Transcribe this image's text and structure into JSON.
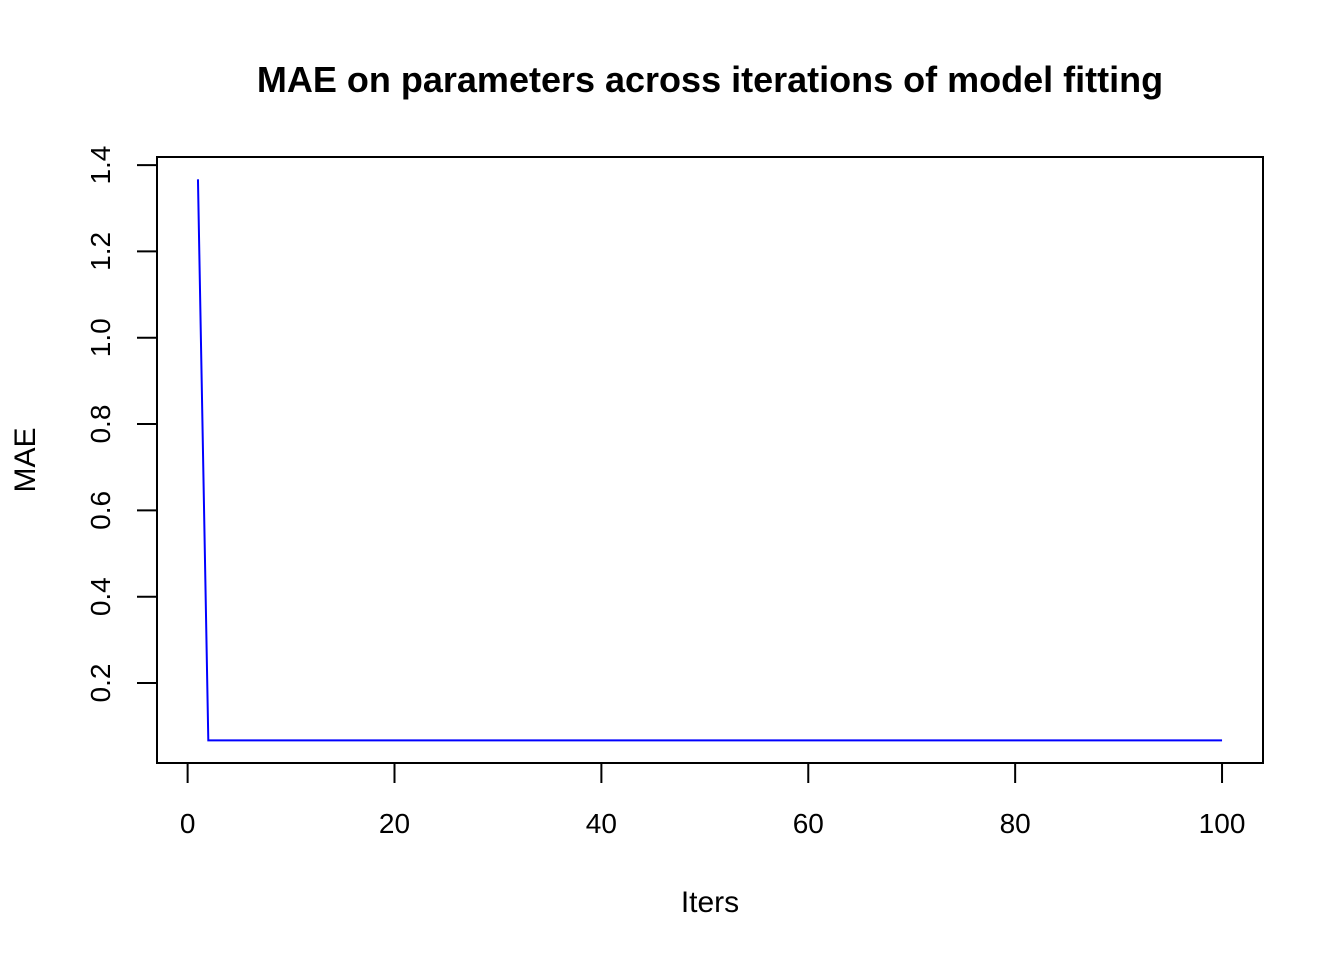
{
  "chart_data": {
    "type": "line",
    "title": "MAE on parameters across iterations of model fitting",
    "xlabel": "Iters",
    "ylabel": "MAE",
    "xlim": [
      -2.96,
      103.96
    ],
    "ylim": [
      0.0147,
      1.4187
    ],
    "x_ticks": [
      0,
      20,
      40,
      60,
      80,
      100
    ],
    "y_ticks": [
      0.2,
      0.4,
      0.6,
      0.8,
      1.0,
      1.2,
      1.4
    ],
    "x_tick_labels": [
      "0",
      "20",
      "40",
      "60",
      "80",
      "100"
    ],
    "y_tick_labels": [
      "0.2",
      "0.4",
      "0.6",
      "0.8",
      "1.0",
      "1.2",
      "1.4"
    ],
    "grid": false,
    "legend": "none",
    "series": [
      {
        "color": "#0000ff",
        "x": [
          1,
          2,
          15,
          100
        ],
        "y": [
          1.367,
          0.067,
          0.067,
          0.067
        ]
      }
    ]
  }
}
